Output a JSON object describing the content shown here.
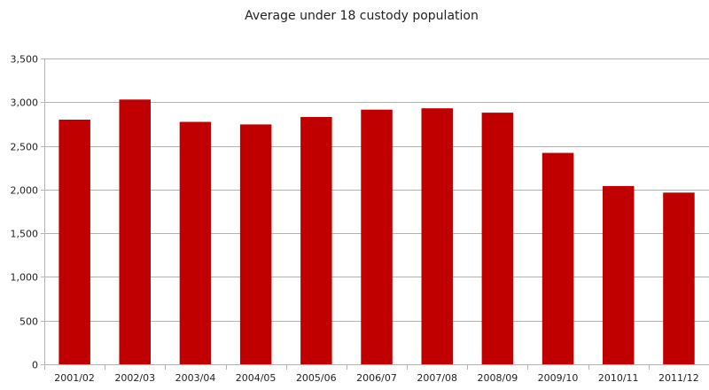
{
  "chart_data": {
    "type": "bar",
    "title": "Average under 18 custody population",
    "xlabel": "",
    "ylabel": "",
    "categories": [
      "2001/02",
      "2002/03",
      "2003/04",
      "2004/05",
      "2005/06",
      "2006/07",
      "2007/08",
      "2008/09",
      "2009/10",
      "2010/11",
      "2011/12"
    ],
    "values": [
      2800,
      3030,
      2775,
      2745,
      2830,
      2915,
      2930,
      2880,
      2420,
      2040,
      1965
    ],
    "ylim": [
      0,
      3500
    ],
    "yticks": [
      0,
      500,
      1000,
      1500,
      2000,
      2500,
      3000,
      3500
    ],
    "ytick_labels": [
      "0",
      "500",
      "1,000",
      "1,500",
      "2,000",
      "2,500",
      "3,000",
      "3,500"
    ],
    "grid": true,
    "legend": "none",
    "bar_color": "#c00000",
    "grid_color": "#b3b3b3",
    "axis_color": "#b3b3b3"
  }
}
